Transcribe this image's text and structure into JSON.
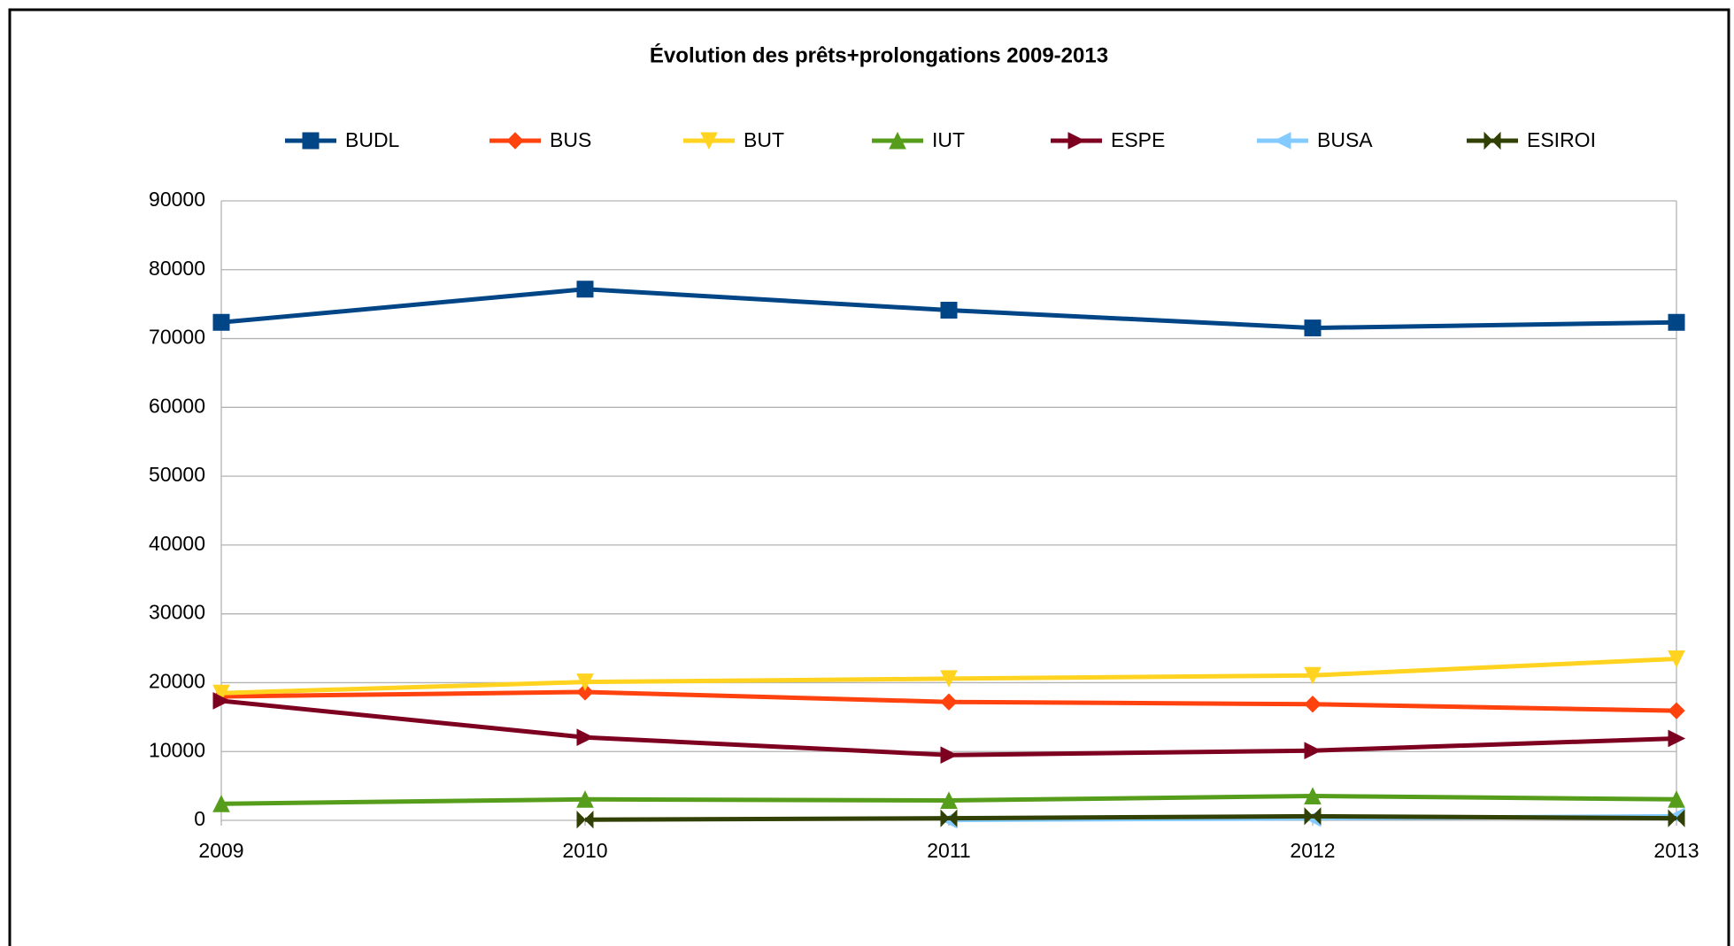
{
  "chart_data": {
    "type": "line",
    "title": "Évolution des prêts+prolongations 2009-2013",
    "categories": [
      "2009",
      "2010",
      "2011",
      "2012",
      "2013"
    ],
    "series": [
      {
        "name": "BUDL",
        "color": "#004586",
        "marker": "square",
        "values": [
          72350,
          77170,
          74120,
          71540,
          72350
        ]
      },
      {
        "name": "BUS",
        "color": "#ff420e",
        "marker": "diamond",
        "values": [
          18000,
          18650,
          17200,
          16880,
          15920
        ]
      },
      {
        "name": "BUT",
        "color": "#ffd320",
        "marker": "triangle-down",
        "values": [
          18490,
          20100,
          20580,
          21060,
          23470
        ]
      },
      {
        "name": "IUT",
        "color": "#579d1c",
        "marker": "triangle-up",
        "values": [
          2410,
          3050,
          2890,
          3540,
          3050
        ]
      },
      {
        "name": "ESPE",
        "color": "#7e0021",
        "marker": "triangle-right",
        "values": [
          17360,
          12060,
          9490,
          10130,
          11900
        ]
      },
      {
        "name": "BUSA",
        "color": "#83caff",
        "marker": "triangle-left",
        "values": [
          null,
          null,
          50,
          300,
          600
        ]
      },
      {
        "name": "ESIROI",
        "color": "#314004",
        "marker": "bowtie",
        "values": [
          null,
          100,
          300,
          600,
          300
        ]
      }
    ],
    "ylim": [
      0,
      90000
    ],
    "yticks": [
      0,
      10000,
      20000,
      30000,
      40000,
      50000,
      60000,
      70000,
      80000,
      90000
    ],
    "grid": true,
    "legend": "top"
  }
}
